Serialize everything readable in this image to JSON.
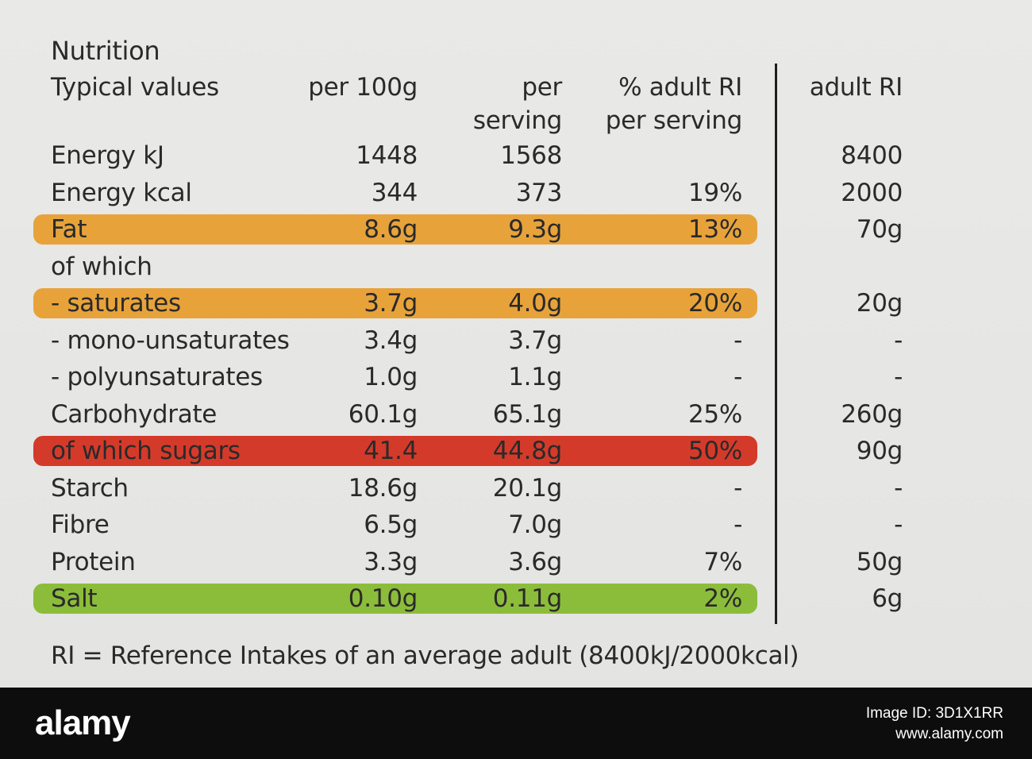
{
  "title": "Nutrition",
  "headers": {
    "label": "Typical values",
    "per100g": "per 100g",
    "perServing1": "per",
    "perServing2": "serving",
    "pctRI1": "% adult RI",
    "pctRI2": "per serving",
    "adultRI": "adult RI"
  },
  "rows": [
    {
      "label": "Energy kJ",
      "per100g": "1448",
      "perServing": "1568",
      "pctRI": "",
      "adultRI": "8400"
    },
    {
      "label": "Energy kcal",
      "per100g": "344",
      "perServing": "373",
      "pctRI": "19%",
      "adultRI": "2000"
    },
    {
      "label": "Fat",
      "per100g": "8.6g",
      "perServing": "9.3g",
      "pctRI": "13%",
      "adultRI": "70g",
      "highlight": "amber"
    },
    {
      "label": "of which",
      "per100g": "",
      "perServing": "",
      "pctRI": "",
      "adultRI": ""
    },
    {
      "label": "- saturates",
      "per100g": "3.7g",
      "perServing": "4.0g",
      "pctRI": "20%",
      "adultRI": "20g",
      "highlight": "amber"
    },
    {
      "label": "- mono-unsaturates",
      "per100g": "3.4g",
      "perServing": "3.7g",
      "pctRI": "-",
      "adultRI": "-"
    },
    {
      "label": "- polyunsaturates",
      "per100g": "1.0g",
      "perServing": "1.1g",
      "pctRI": "-",
      "adultRI": "-"
    },
    {
      "label": "Carbohydrate",
      "per100g": "60.1g",
      "perServing": "65.1g",
      "pctRI": "25%",
      "adultRI": "260g"
    },
    {
      "label": "of which sugars",
      "per100g": "41.4",
      "perServing": "44.8g",
      "pctRI": "50%",
      "adultRI": "90g",
      "highlight": "red"
    },
    {
      "label": "Starch",
      "per100g": "18.6g",
      "perServing": "20.1g",
      "pctRI": "-",
      "adultRI": "-"
    },
    {
      "label": "Fibre",
      "per100g": "6.5g",
      "perServing": "7.0g",
      "pctRI": "-",
      "adultRI": "-"
    },
    {
      "label": "Protein",
      "per100g": "3.3g",
      "perServing": "3.6g",
      "pctRI": "7%",
      "adultRI": "50g"
    },
    {
      "label": "Salt",
      "per100g": "0.10g",
      "perServing": "0.11g",
      "pctRI": "2%",
      "adultRI": "6g",
      "highlight": "green"
    }
  ],
  "footnote": "RI = Reference Intakes of an average adult (8400kJ/2000kcal)",
  "footer": {
    "brand": "alamy",
    "imageId": "Image ID: 3D1X1RR",
    "site": "www.alamy.com"
  },
  "colors": {
    "amber": "#e7a33a",
    "red": "#d43a2a",
    "green": "#8cbd3a"
  }
}
